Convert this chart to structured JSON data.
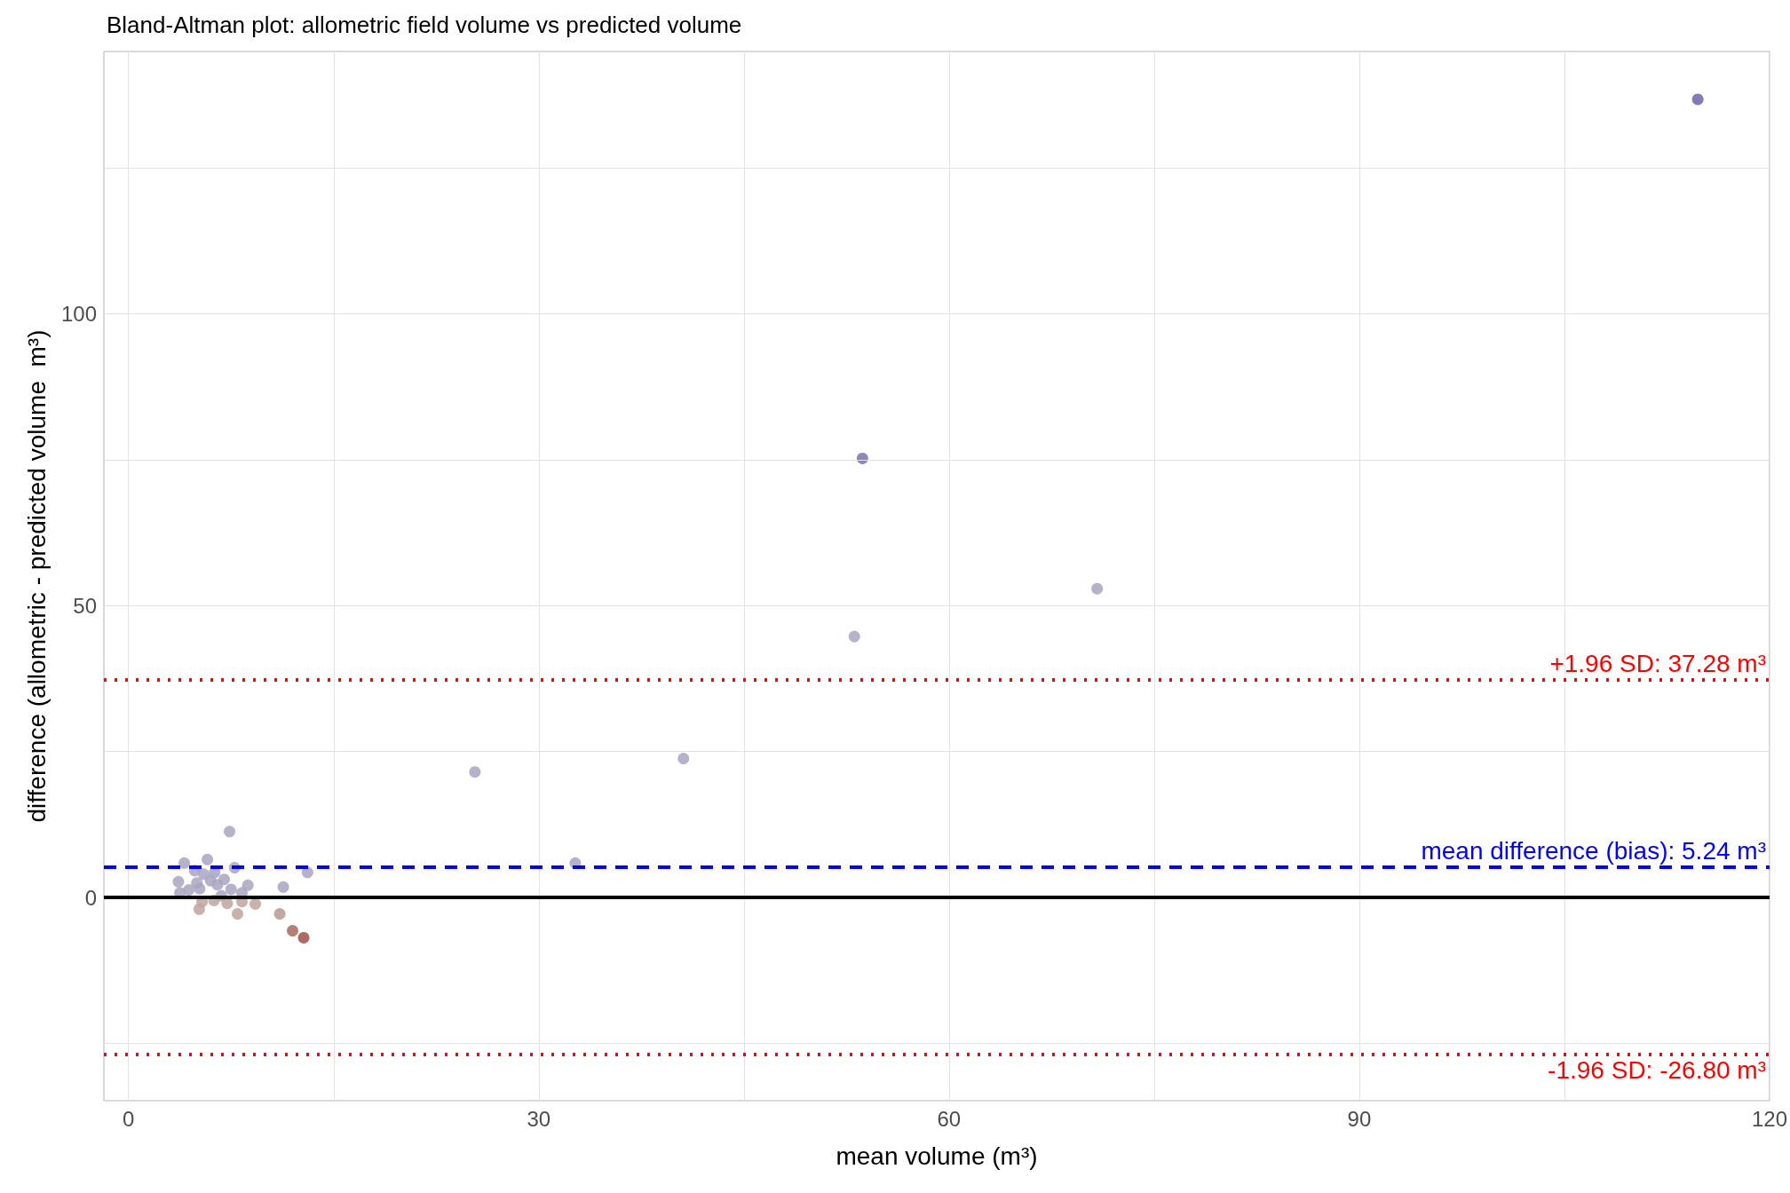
{
  "chart_data": {
    "type": "scatter",
    "title": "Bland-Altman plot: allometric field volume vs predicted volume",
    "xlabel": "mean volume (m³)",
    "ylabel": "difference (allometric - predicted volume  m³)",
    "x": [
      7.39,
      4.08,
      5.77,
      7.76,
      13.09,
      11.32,
      8.73,
      3.65,
      3.76,
      4.84,
      8.3,
      6.79,
      4.41,
      5.0,
      5.5,
      6.0,
      6.5,
      7.0,
      5.2,
      6.3,
      7.5,
      5.17,
      5.38,
      6.25,
      7.22,
      7.97,
      9.27,
      11.06,
      12.0,
      12.81,
      8.3,
      25.33,
      32.67,
      40.58,
      53.08,
      53.67,
      70.83,
      114.75
    ],
    "values": [
      11.3,
      5.9,
      6.5,
      5.1,
      4.3,
      1.8,
      2.1,
      2.7,
      0.8,
      4.6,
      0.8,
      0.3,
      1.3,
      2.5,
      4.0,
      2.9,
      2.2,
      3.1,
      1.5,
      4.3,
      1.4,
      -2.0,
      -0.7,
      -0.5,
      -1.0,
      -2.8,
      -1.1,
      -2.8,
      -5.7,
      -6.9,
      -0.7,
      21.5,
      5.9,
      23.8,
      44.7,
      75.2,
      52.9,
      136.7
    ],
    "colors": [
      "#a8a4c0",
      "#a8a4c0",
      "#a8a4c0",
      "#a8a4c0",
      "#a8a4c0",
      "#a8a4c0",
      "#a8a4c0",
      "#a8a4c0",
      "#a8a4c0",
      "#a8a4c0",
      "#a8a4c0",
      "#a8a4c0",
      "#a8a4c0",
      "#a8a4c0",
      "#a8a4c0",
      "#a8a4c0",
      "#a8a4c0",
      "#a8a4c0",
      "#a8a4c0",
      "#a8a4c0",
      "#a8a4c0",
      "#c0a49c",
      "#c0a49c",
      "#c0a49c",
      "#c0a49c",
      "#c0a49c",
      "#c0a49c",
      "#b89890",
      "#a86860",
      "#9c5048",
      "#c0a49c",
      "#a8a4c0",
      "#a8a4c0",
      "#a8a4c0",
      "#a8a4c0",
      "#7a72b0",
      "#a8a4c0",
      "#6c64a8"
    ],
    "xlim": [
      -1.8,
      120
    ],
    "ylim": [
      -34.8,
      144.9
    ],
    "xticks": [
      0,
      {
        "value": 15,
        "label": null
      },
      30,
      {
        "value": 45,
        "label": null
      },
      60,
      {
        "value": 75,
        "label": null
      },
      90,
      {
        "value": 105,
        "label": null
      },
      120
    ],
    "yticks": [
      {
        "value": -25,
        "label": null
      },
      0,
      {
        "value": 25,
        "label": null
      },
      50,
      {
        "value": 75,
        "label": null
      },
      100,
      {
        "value": 125,
        "label": null
      }
    ],
    "ref_lines": [
      {
        "axis": "y",
        "value": 0,
        "color": "#000000",
        "line_style": "solid"
      },
      {
        "axis": "y",
        "value": 5.24,
        "label": "mean difference (bias): 5.24 m³",
        "color": "#0000ff",
        "line_style": "dashed"
      },
      {
        "axis": "y",
        "value": 37.28,
        "label": "+1.96 SD: 37.28 m³",
        "color": "#ff0000",
        "line_style": "dotted"
      },
      {
        "axis": "y",
        "value": -26.8,
        "label": "-1.96 SD: -26.80 m³",
        "color": "#ff0000",
        "line_style": "dotted"
      }
    ],
    "grid": true,
    "marker": "circle"
  }
}
